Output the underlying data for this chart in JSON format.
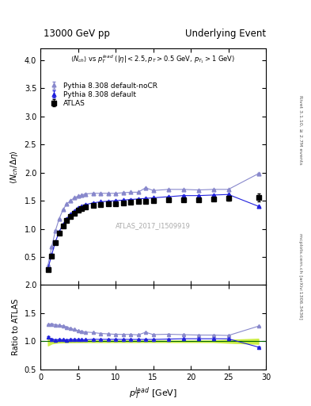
{
  "title_left": "13000 GeV pp",
  "title_right": "Underlying Event",
  "ylabel_main": "$\\langle N_{ch}/\\Delta\\eta\\rangle$",
  "ylabel_ratio": "Ratio to ATLAS",
  "xlabel": "$p_T^{lead}$ [GeV]",
  "annotation": "ATLAS_2017_I1509919",
  "subtitle": "$\\langle N_{ch}\\rangle$ vs $p_T^{lead}$ ($|\\eta| < 2.5, p_T > 0.5$ GeV, $p_{T_1} > 1$ GeV)",
  "right_label1": "Rivet 3.1.10, ≥ 2.7M events",
  "right_label2": "mcplots.cern.ch [arXiv:1306.3436]",
  "legend": [
    "ATLAS",
    "Pythia 8.308 default",
    "Pythia 8.308 default-noCR"
  ],
  "atlas_x": [
    1.0,
    1.5,
    2.0,
    2.5,
    3.0,
    3.5,
    4.0,
    4.5,
    5.0,
    5.5,
    6.0,
    7.0,
    8.0,
    9.0,
    10.0,
    11.0,
    12.0,
    13.0,
    14.0,
    15.0,
    17.0,
    19.0,
    21.0,
    23.0,
    25.0,
    29.0
  ],
  "atlas_y": [
    0.27,
    0.52,
    0.75,
    0.92,
    1.05,
    1.15,
    1.22,
    1.28,
    1.33,
    1.36,
    1.39,
    1.41,
    1.43,
    1.44,
    1.45,
    1.46,
    1.47,
    1.48,
    1.49,
    1.5,
    1.51,
    1.52,
    1.52,
    1.53,
    1.54,
    1.56
  ],
  "atlas_yerr": [
    0.02,
    0.02,
    0.02,
    0.02,
    0.02,
    0.02,
    0.02,
    0.02,
    0.02,
    0.02,
    0.02,
    0.02,
    0.02,
    0.02,
    0.02,
    0.02,
    0.02,
    0.02,
    0.02,
    0.02,
    0.02,
    0.02,
    0.02,
    0.02,
    0.04,
    0.07
  ],
  "py_def_x": [
    1.0,
    1.5,
    2.0,
    2.5,
    3.0,
    3.5,
    4.0,
    4.5,
    5.0,
    5.5,
    6.0,
    7.0,
    8.0,
    9.0,
    10.0,
    11.0,
    12.0,
    13.0,
    14.0,
    15.0,
    17.0,
    19.0,
    21.0,
    23.0,
    25.0,
    29.0
  ],
  "py_def_y": [
    0.29,
    0.54,
    0.77,
    0.95,
    1.08,
    1.18,
    1.26,
    1.32,
    1.37,
    1.4,
    1.43,
    1.46,
    1.48,
    1.49,
    1.5,
    1.51,
    1.52,
    1.53,
    1.54,
    1.55,
    1.57,
    1.59,
    1.59,
    1.6,
    1.61,
    1.4
  ],
  "py_def_yerr": [
    0.003,
    0.003,
    0.003,
    0.003,
    0.003,
    0.003,
    0.003,
    0.003,
    0.003,
    0.003,
    0.003,
    0.003,
    0.003,
    0.003,
    0.003,
    0.003,
    0.003,
    0.003,
    0.003,
    0.003,
    0.003,
    0.003,
    0.003,
    0.003,
    0.003,
    0.008
  ],
  "py_nocr_x": [
    1.0,
    1.5,
    2.0,
    2.5,
    3.0,
    3.5,
    4.0,
    4.5,
    5.0,
    5.5,
    6.0,
    7.0,
    8.0,
    9.0,
    10.0,
    11.0,
    12.0,
    13.0,
    14.0,
    15.0,
    17.0,
    19.0,
    21.0,
    23.0,
    25.0,
    29.0
  ],
  "py_nocr_y": [
    0.35,
    0.68,
    0.97,
    1.18,
    1.34,
    1.44,
    1.5,
    1.55,
    1.58,
    1.6,
    1.62,
    1.63,
    1.63,
    1.63,
    1.63,
    1.64,
    1.65,
    1.65,
    1.73,
    1.68,
    1.7,
    1.7,
    1.69,
    1.7,
    1.7,
    1.98
  ],
  "py_nocr_yerr": [
    0.003,
    0.003,
    0.003,
    0.003,
    0.003,
    0.003,
    0.003,
    0.003,
    0.003,
    0.003,
    0.003,
    0.003,
    0.003,
    0.003,
    0.003,
    0.003,
    0.003,
    0.003,
    0.003,
    0.003,
    0.003,
    0.003,
    0.003,
    0.003,
    0.003,
    0.008
  ],
  "atlas_color": "#000000",
  "py_def_color": "#2020dd",
  "py_nocr_color": "#8888cc",
  "ratio_band_color": "#ccee44",
  "xlim": [
    0,
    30
  ],
  "ylim_main": [
    0,
    4.2
  ],
  "ylim_ratio": [
    0.5,
    2.0
  ],
  "yticks_main": [
    0.5,
    1.0,
    1.5,
    2.0,
    2.5,
    3.0,
    3.5,
    4.0
  ],
  "yticks_ratio": [
    0.5,
    1.0,
    1.5,
    2.0
  ],
  "xticks": [
    0,
    5,
    10,
    15,
    20,
    25,
    30
  ]
}
